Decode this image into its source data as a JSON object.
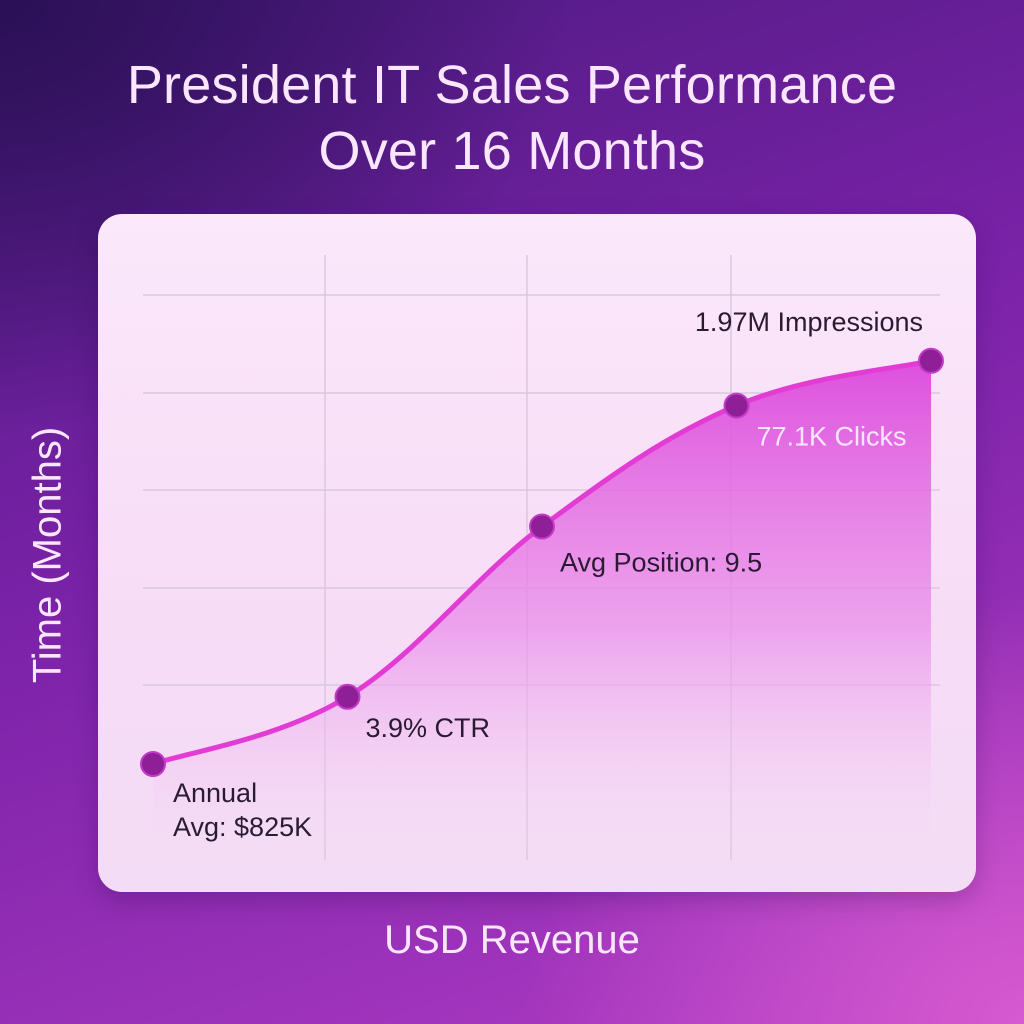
{
  "chart_data": {
    "type": "area",
    "title": [
      "President IT Sales Performance",
      "Over 16 Months"
    ],
    "xlabel": "USD Revenue",
    "ylabel": "Time (Months)",
    "grid": true,
    "points": [
      {
        "label": [
          "Annual",
          "Avg: $825K"
        ],
        "value": 0.0
      },
      {
        "label": [
          "3.9% CTR"
        ],
        "value": 0.15
      },
      {
        "label": [
          "Avg Position: 9.5"
        ],
        "value": 0.53
      },
      {
        "label": [
          "77.1K Clicks"
        ],
        "value": 0.8
      },
      {
        "label": [
          "1.97M Impressions"
        ],
        "value": 0.9
      }
    ],
    "colors": {
      "line": "#e23cd4",
      "marker": "#8e1f97",
      "area_top": "#e05ee0",
      "grid": "#d9c9dc"
    }
  }
}
